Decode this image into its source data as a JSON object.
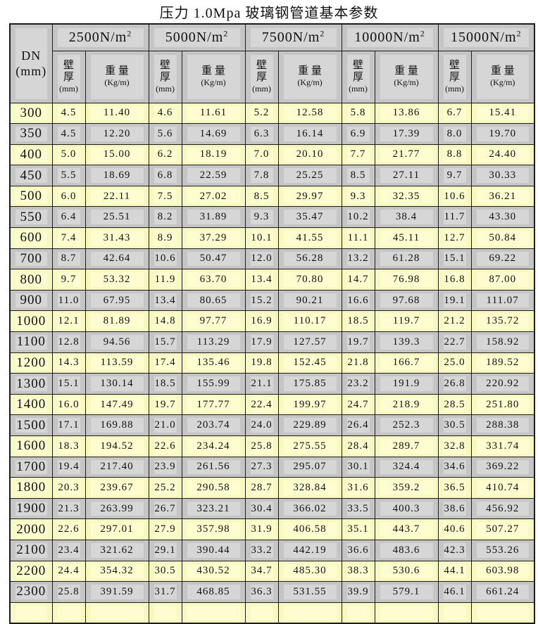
{
  "title": "压力 1.0Mpa 玻璃钢管道基本参数",
  "table": {
    "dn_header": [
      "DN",
      "(mm)"
    ],
    "load_groups": [
      {
        "base": "2500N/m",
        "sup": "2"
      },
      {
        "base": "5000N/m",
        "sup": "2"
      },
      {
        "base": "7500N/m",
        "sup": "2"
      },
      {
        "base": "10000N/m",
        "sup": "2"
      },
      {
        "base": "15000N/m",
        "sup": "2"
      }
    ],
    "subheaders": {
      "thickness_lines": [
        "壁",
        "厚",
        "(mm)"
      ],
      "weight_lines": [
        "重 量",
        "(Kg/m)"
      ]
    },
    "rows": [
      {
        "dn": "300",
        "values": [
          "4.5",
          "11.40",
          "4.6",
          "11.61",
          "5.2",
          "12.58",
          "5.8",
          "13.86",
          "6.7",
          "15.41"
        ]
      },
      {
        "dn": "350",
        "values": [
          "4.5",
          "12.20",
          "5.6",
          "14.69",
          "6.3",
          "16.14",
          "6.9",
          "17.39",
          "8.0",
          "19.70"
        ]
      },
      {
        "dn": "400",
        "values": [
          "5.0",
          "15.00",
          "6.2",
          "18.19",
          "7.0",
          "20.10",
          "7.7",
          "21.77",
          "8.8",
          "24.40"
        ]
      },
      {
        "dn": "450",
        "values": [
          "5.5",
          "18.69",
          "6.8",
          "22.59",
          "7.8",
          "25.25",
          "8.5",
          "27.11",
          "9.7",
          "30.33"
        ]
      },
      {
        "dn": "500",
        "values": [
          "6.0",
          "22.11",
          "7.5",
          "27.02",
          "8.5",
          "29.97",
          "9.3",
          "32.35",
          "10.6",
          "36.21"
        ]
      },
      {
        "dn": "550",
        "values": [
          "6.4",
          "25.51",
          "8.2",
          "31.89",
          "9.3",
          "35.47",
          "10.2",
          "38.4",
          "11.7",
          "43.30"
        ]
      },
      {
        "dn": "600",
        "values": [
          "7.4",
          "31.43",
          "8.9",
          "37.29",
          "10.1",
          "41.55",
          "11.1",
          "45.11",
          "12.7",
          "50.84"
        ]
      },
      {
        "dn": "700",
        "values": [
          "8.7",
          "42.64",
          "10.6",
          "50.47",
          "12.0",
          "56.28",
          "13.2",
          "61.28",
          "15.1",
          "69.22"
        ]
      },
      {
        "dn": "800",
        "values": [
          "9.7",
          "53.32",
          "11.9",
          "63.70",
          "13.4",
          "70.80",
          "14.7",
          "76.98",
          "16.8",
          "87.00"
        ]
      },
      {
        "dn": "900",
        "values": [
          "11.0",
          "67.95",
          "13.4",
          "80.65",
          "15.2",
          "90.21",
          "16.6",
          "97.68",
          "19.1",
          "111.07"
        ]
      },
      {
        "dn": "1000",
        "values": [
          "12.1",
          "81.89",
          "14.8",
          "97.77",
          "16.9",
          "110.17",
          "18.5",
          "119.7",
          "21.2",
          "135.72"
        ]
      },
      {
        "dn": "1100",
        "values": [
          "12.8",
          "94.56",
          "15.7",
          "113.29",
          "17.9",
          "127.57",
          "19.7",
          "139.3",
          "22.7",
          "158.92"
        ]
      },
      {
        "dn": "1200",
        "values": [
          "14.3",
          "113.59",
          "17.4",
          "135.46",
          "19.8",
          "152.45",
          "21.8",
          "166.7",
          "25.0",
          "189.52"
        ]
      },
      {
        "dn": "1300",
        "values": [
          "15.1",
          "130.14",
          "18.5",
          "155.99",
          "21.1",
          "175.85",
          "23.2",
          "191.9",
          "26.8",
          "220.92"
        ]
      },
      {
        "dn": "1400",
        "values": [
          "16.0",
          "147.49",
          "19.7",
          "177.77",
          "22.4",
          "199.97",
          "24.7",
          "218.9",
          "28.5",
          "251.80"
        ]
      },
      {
        "dn": "1500",
        "values": [
          "17.1",
          "169.88",
          "21.0",
          "203.74",
          "24.0",
          "229.89",
          "26.4",
          "252.3",
          "30.5",
          "288.38"
        ]
      },
      {
        "dn": "1600",
        "values": [
          "18.3",
          "194.52",
          "22.6",
          "234.24",
          "25.8",
          "275.55",
          "28.4",
          "289.7",
          "32.8",
          "331.74"
        ]
      },
      {
        "dn": "1700",
        "values": [
          "19.4",
          "217.40",
          "23.9",
          "261.56",
          "27.3",
          "295.07",
          "30.1",
          "324.4",
          "34.6",
          "369.22"
        ]
      },
      {
        "dn": "1800",
        "values": [
          "20.3",
          "239.67",
          "25.2",
          "290.58",
          "28.7",
          "328.84",
          "31.6",
          "359.2",
          "36.5",
          "410.74"
        ]
      },
      {
        "dn": "1900",
        "values": [
          "21.3",
          "263.99",
          "26.7",
          "323.21",
          "30.4",
          "366.02",
          "33.5",
          "400.3",
          "38.6",
          "456.92"
        ]
      },
      {
        "dn": "2000",
        "values": [
          "22.6",
          "297.01",
          "27.9",
          "357.98",
          "31.9",
          "406.58",
          "35.1",
          "443.7",
          "40.6",
          "507.27"
        ]
      },
      {
        "dn": "2100",
        "values": [
          "23.4",
          "321.62",
          "29.1",
          "390.44",
          "33.2",
          "442.19",
          "36.6",
          "483.6",
          "42.3",
          "553.26"
        ]
      },
      {
        "dn": "2200",
        "values": [
          "24.4",
          "354.32",
          "30.5",
          "430.52",
          "34.7",
          "485.30",
          "38.3",
          "530.6",
          "44.1",
          "603.98"
        ]
      },
      {
        "dn": "2300",
        "values": [
          "25.8",
          "391.59",
          "31.7",
          "468.85",
          "36.3",
          "531.55",
          "39.9",
          "579.1",
          "46.1",
          "661.24"
        ]
      },
      {
        "dn": "",
        "values": [
          "",
          "",
          "",
          "",
          "",
          "",
          "",
          "",
          "",
          ""
        ]
      }
    ],
    "colors": {
      "row_yellow": "#f8f8c1",
      "row_gray": "#c5c5c5",
      "grid": "#1c1c1c"
    }
  }
}
